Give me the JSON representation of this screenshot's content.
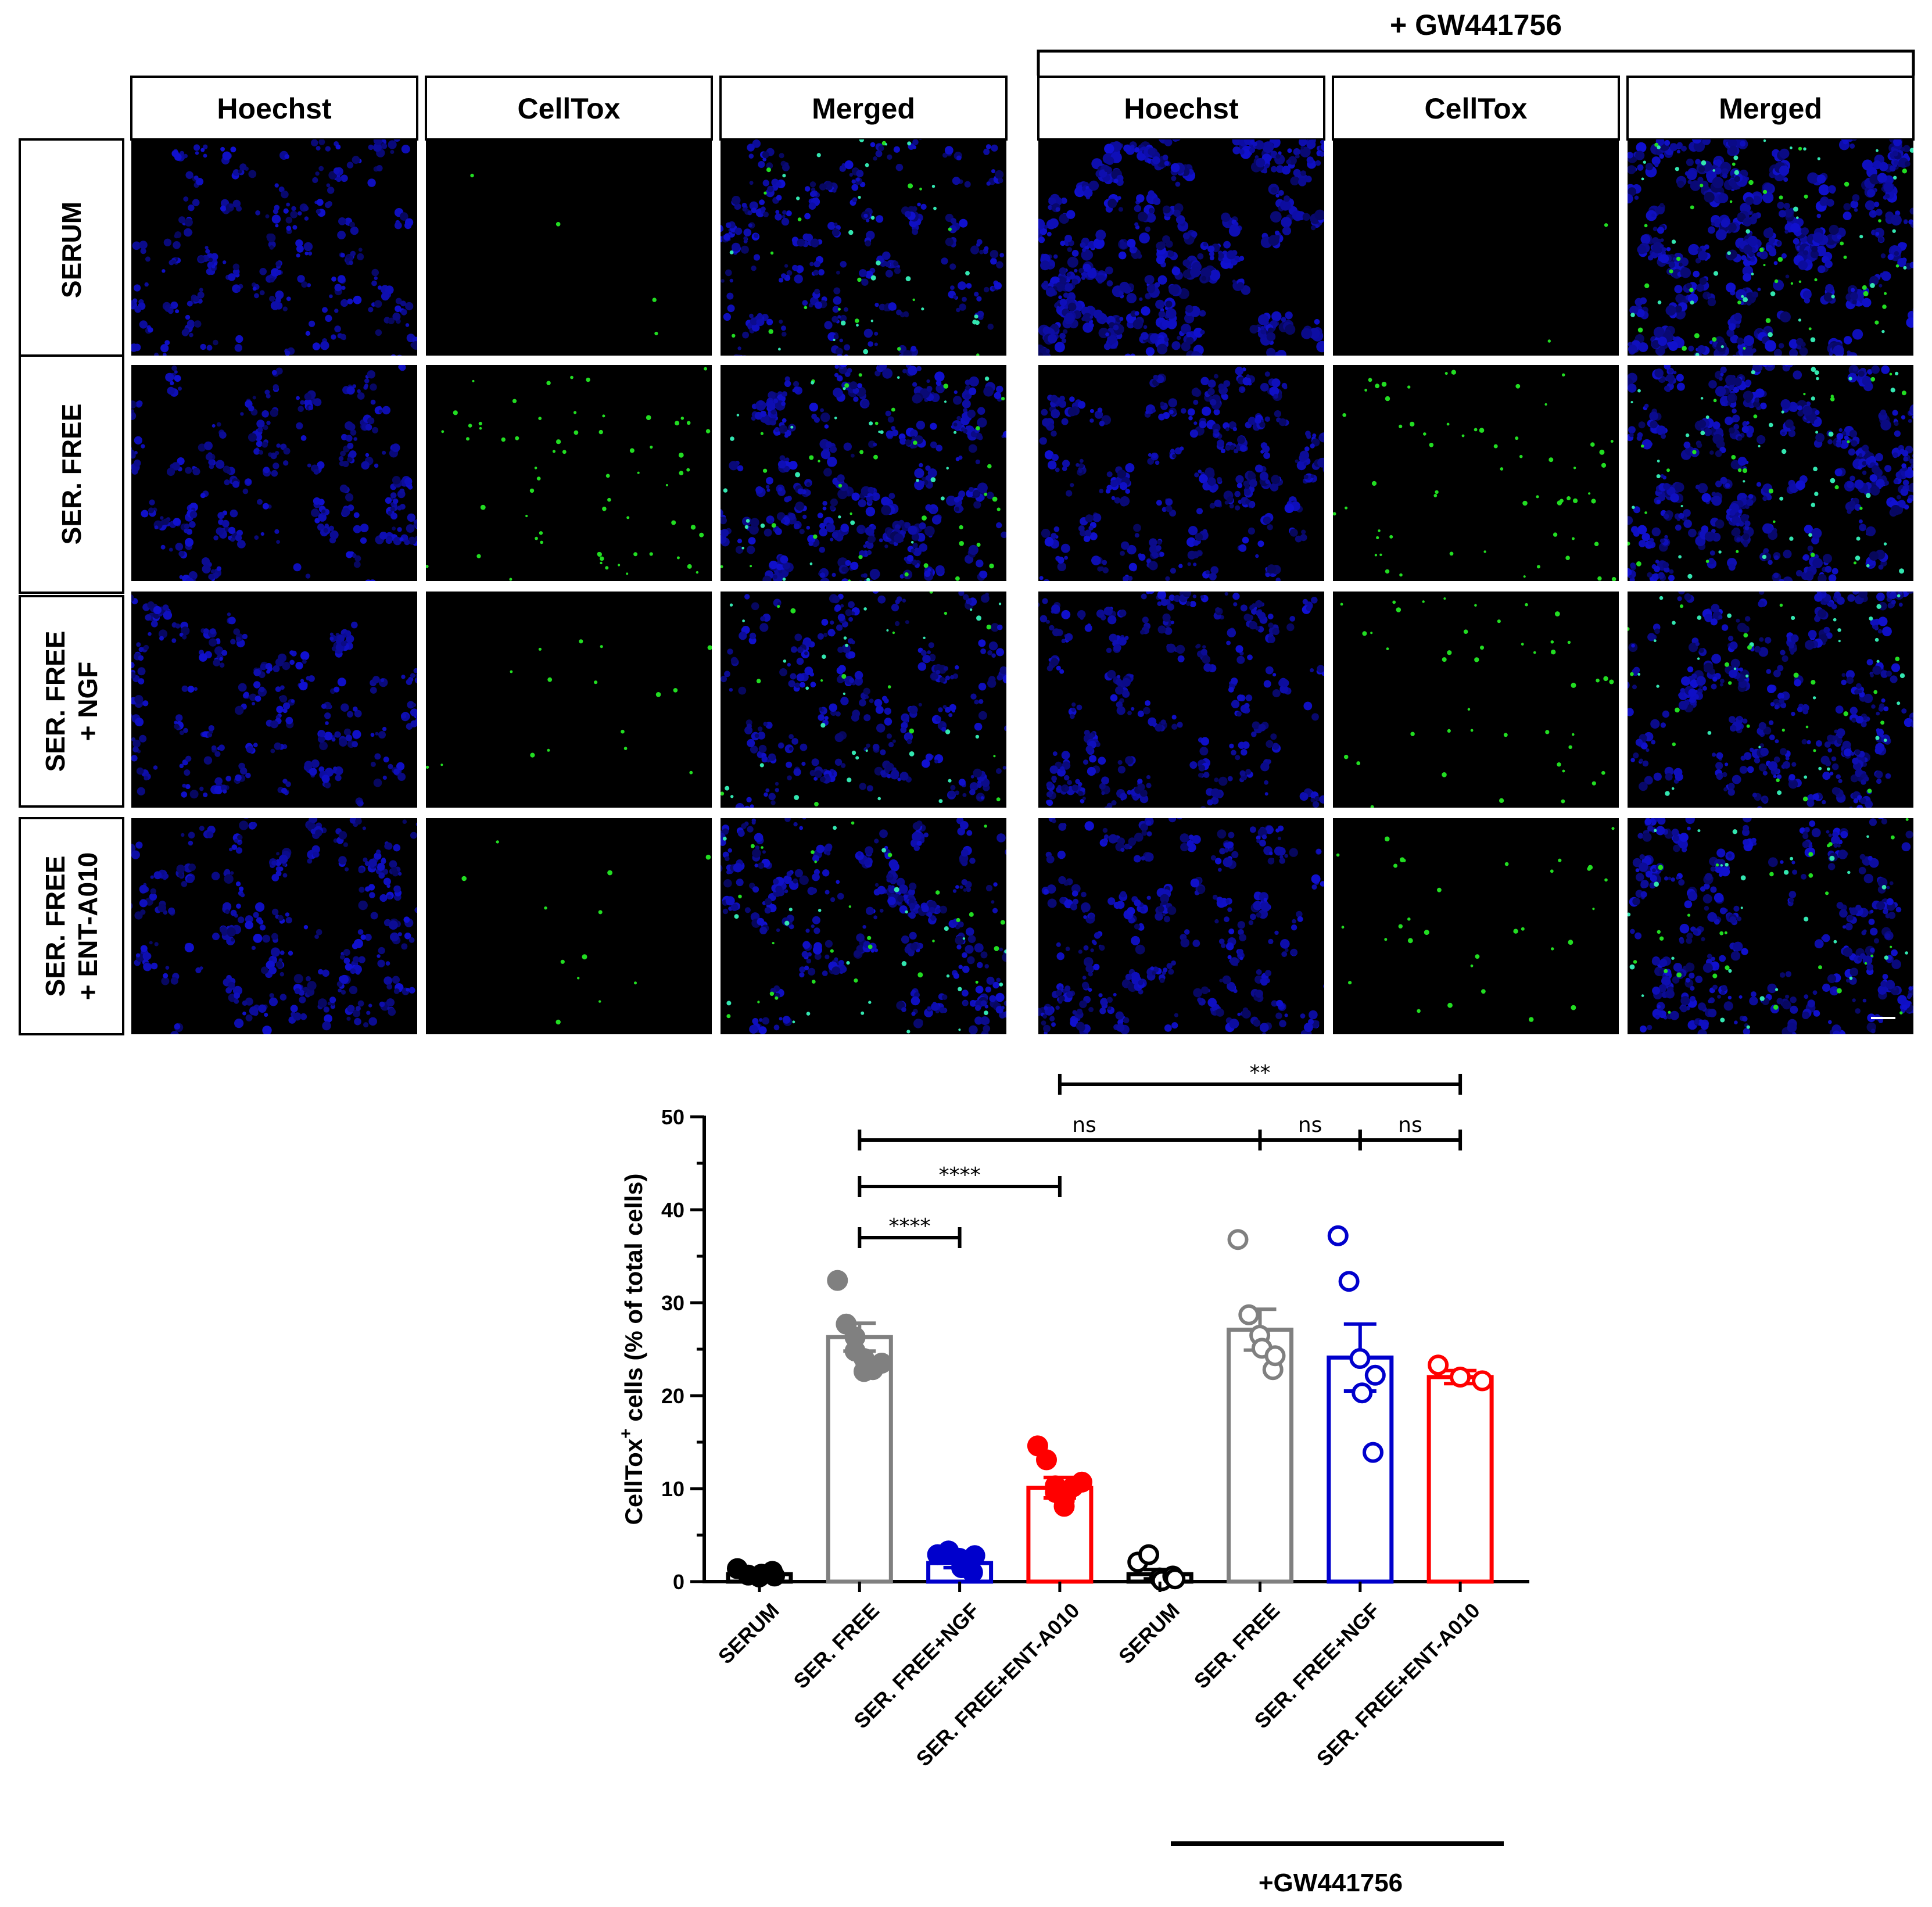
{
  "figure": {
    "top_bracket_label": "+ GW441756",
    "column_headers": [
      "Hoechst",
      "CellTox",
      "Merged"
    ],
    "row_headers": [
      [
        "SERUM"
      ],
      [
        "SER. FREE"
      ],
      [
        "SER. FREE",
        "+ NGF"
      ],
      [
        "SER. FREE",
        "+ ENT-A010"
      ]
    ],
    "panel_channels": [
      "blue",
      "green",
      "merged"
    ],
    "panel_density": [
      [
        0.55,
        0.05,
        0.55,
        1.0,
        0.03,
        1.0
      ],
      [
        0.55,
        0.8,
        0.8,
        0.7,
        0.75,
        0.85
      ],
      [
        0.55,
        0.2,
        0.55,
        0.6,
        0.55,
        0.7
      ],
      [
        0.65,
        0.15,
        0.65,
        0.7,
        0.4,
        0.7
      ]
    ]
  },
  "chart_data": {
    "type": "bar",
    "ylabel_main": "CellTox",
    "ylabel_sup": "+",
    "ylabel_rest": " cells (% of total cells)",
    "ylim": [
      0,
      50
    ],
    "yticks": [
      0,
      10,
      20,
      30,
      40,
      50
    ],
    "categories": [
      "SERUM",
      "SER. FREE",
      "SER. FREE+NGF",
      "SER. FREE+ENT-A010",
      "SERUM",
      "SER. FREE",
      "SER. FREE+NGF",
      "SER. FREE+ENT-A010"
    ],
    "group_label": "+GW441756",
    "means": [
      0.8,
      26.3,
      2.0,
      10.1,
      0.8,
      27.1,
      24.1,
      22.0
    ],
    "sem": [
      0.2,
      1.5,
      0.5,
      1.1,
      0.5,
      2.2,
      3.6,
      0.7
    ],
    "points": [
      [
        1.4,
        0.7,
        0.5,
        0.8,
        1.1,
        0.6
      ],
      [
        32.4,
        27.7,
        26.3,
        24.8,
        24.0,
        22.6,
        22.8,
        23.5
      ],
      [
        2.9,
        3.3,
        2.5,
        1.5,
        1.0,
        2.8
      ],
      [
        14.6,
        13.1,
        10.3,
        9.6,
        8.1,
        8.7,
        10.2,
        10.7
      ],
      [
        2.1,
        2.9,
        0.4,
        0.1,
        0.6,
        0.3
      ],
      [
        36.8,
        28.7,
        26.5,
        25.1,
        22.8,
        24.3
      ],
      [
        37.2,
        32.3,
        24.0,
        20.3,
        13.9,
        22.2
      ],
      [
        23.3,
        22.0,
        21.6
      ]
    ],
    "colors": [
      "#000000",
      "#808080",
      "#0000cc",
      "#ff0000",
      "#000000",
      "#808080",
      "#0000cc",
      "#ff0000"
    ],
    "filled": [
      true,
      true,
      true,
      true,
      false,
      false,
      false,
      false
    ],
    "comparisons": [
      {
        "from": 1,
        "to": 2,
        "label": "****"
      },
      {
        "from": 1,
        "to": 3,
        "label": "****"
      },
      {
        "from": 1,
        "to": 5,
        "label": "ns"
      },
      {
        "from": 5,
        "to": 6,
        "label": "ns"
      },
      {
        "from": 6,
        "to": 7,
        "label": "ns"
      },
      {
        "from": 3,
        "to": 7,
        "label": "**"
      }
    ]
  }
}
